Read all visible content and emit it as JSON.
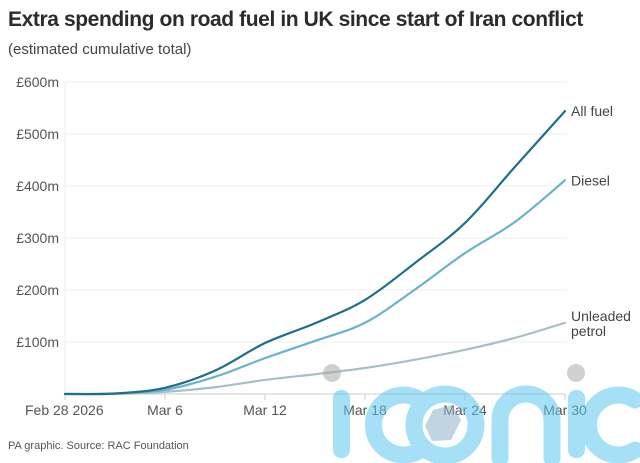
{
  "title": "Extra spending on road fuel in UK since start of Iran conflict",
  "subtitle": "(estimated cumulative total)",
  "source": "PA graphic. Source: RAC Foundation",
  "watermark": "iconic",
  "chart_data": {
    "type": "line",
    "title": "Extra spending on road fuel in UK since start of Iran conflict",
    "subtitle": "(estimated cumulative total)",
    "xlabel": "",
    "ylabel": "",
    "x_days": [
      0,
      3,
      6,
      9,
      12,
      15,
      18,
      21,
      24,
      27,
      30
    ],
    "x_tick_days": [
      0,
      6,
      12,
      18,
      24,
      30
    ],
    "x_tick_labels": [
      "Feb 28 2026",
      "Mar 6",
      "Mar 12",
      "Mar 18",
      "Mar 24",
      "Mar 30"
    ],
    "xlim": [
      0,
      30
    ],
    "ylim": [
      0,
      600
    ],
    "y_ticks": [
      100,
      200,
      300,
      400,
      500,
      600
    ],
    "y_tick_labels": [
      "£100m",
      "£200m",
      "£300m",
      "£400m",
      "£500m",
      "£600m"
    ],
    "grid": true,
    "legend": "direct labels at right end of lines",
    "series": [
      {
        "name": "All fuel",
        "label_lines": [
          "All fuel"
        ],
        "color": "#1d6f8a",
        "values": [
          0,
          1,
          12,
          45,
          98,
          136,
          181,
          252,
          329,
          437,
          544
        ]
      },
      {
        "name": "Diesel",
        "label_lines": [
          "Diesel"
        ],
        "color": "#6bb3c9",
        "values": [
          0,
          1,
          8,
          33,
          69,
          102,
          137,
          201,
          271,
          331,
          411
        ]
      },
      {
        "name": "Unleaded petrol",
        "label_lines": [
          "Unleaded",
          "petrol"
        ],
        "color": "#a9bfc6",
        "values": [
          0,
          0,
          4,
          13,
          27,
          38,
          50,
          66,
          85,
          108,
          137
        ]
      }
    ]
  }
}
